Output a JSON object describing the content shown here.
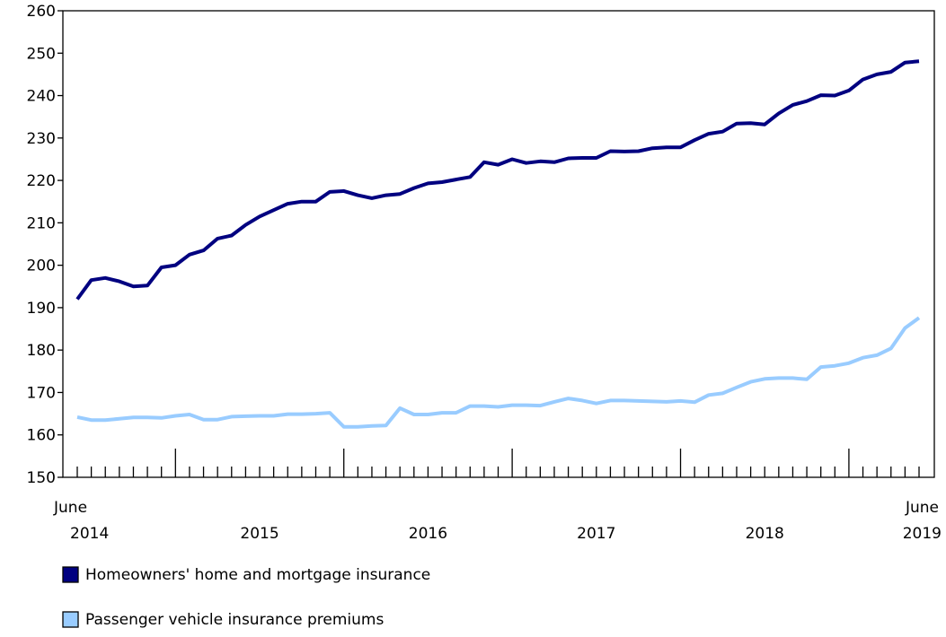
{
  "chart_data": {
    "type": "line",
    "categories": [
      "June",
      null,
      null,
      null,
      null,
      null,
      null,
      null,
      null,
      null,
      null,
      null,
      null,
      null,
      null,
      null,
      null,
      null,
      null,
      null,
      null,
      null,
      null,
      null,
      null,
      null,
      null,
      null,
      null,
      null,
      null,
      null,
      null,
      null,
      null,
      null,
      null,
      null,
      null,
      null,
      null,
      null,
      null,
      null,
      null,
      null,
      null,
      null,
      null,
      null,
      null,
      null,
      null,
      null,
      null,
      null,
      null,
      null,
      null,
      null,
      "June"
    ],
    "years": [
      "2014",
      "2015",
      "2016",
      "2017",
      "2018",
      "2019"
    ],
    "ylim": [
      150,
      260
    ],
    "yticks": [
      150,
      160,
      170,
      180,
      190,
      200,
      210,
      220,
      230,
      240,
      250,
      260
    ],
    "series": [
      {
        "name": "Homeowners' home and mortgage insurance",
        "color": "#000080",
        "values": [
          192,
          196.5,
          197,
          196.2,
          195,
          195.2,
          199.5,
          200,
          202.5,
          203.5,
          206.3,
          207,
          209.5,
          211.5,
          213,
          214.5,
          215,
          215,
          217.3,
          217.5,
          216.5,
          215.8,
          216.5,
          216.8,
          218.2,
          219.3,
          219.6,
          220.2,
          220.8,
          224.3,
          223.7,
          225,
          224.1,
          224.5,
          224.3,
          225.2,
          225.3,
          225.3,
          226.9,
          226.8,
          226.9,
          227.6,
          227.8,
          227.8,
          229.5,
          231,
          231.5,
          233.4,
          233.5,
          233.2,
          235.8,
          237.8,
          238.7,
          240.1,
          240,
          241.2,
          243.8,
          245,
          245.6,
          247.8,
          248.1
        ]
      },
      {
        "name": "Passenger vehicle insurance premiums",
        "color": "#99ccff",
        "values": [
          164.2,
          163.5,
          163.5,
          163.8,
          164.1,
          164.1,
          164.0,
          164.5,
          164.8,
          163.6,
          163.6,
          164.3,
          164.4,
          164.5,
          164.5,
          164.9,
          164.9,
          165.0,
          165.2,
          161.9,
          161.9,
          162.1,
          162.2,
          166.3,
          164.8,
          164.8,
          165.2,
          165.2,
          166.8,
          166.8,
          166.6,
          167.0,
          167.0,
          166.9,
          167.8,
          168.6,
          168.1,
          167.4,
          168.1,
          168.1,
          168.0,
          167.9,
          167.8,
          168.0,
          167.7,
          169.4,
          169.8,
          171.2,
          172.5,
          173.2,
          173.4,
          173.4,
          173.1,
          176.0,
          176.3,
          176.9,
          178.2,
          178.8,
          180.4,
          185.2,
          187.6
        ]
      }
    ]
  }
}
